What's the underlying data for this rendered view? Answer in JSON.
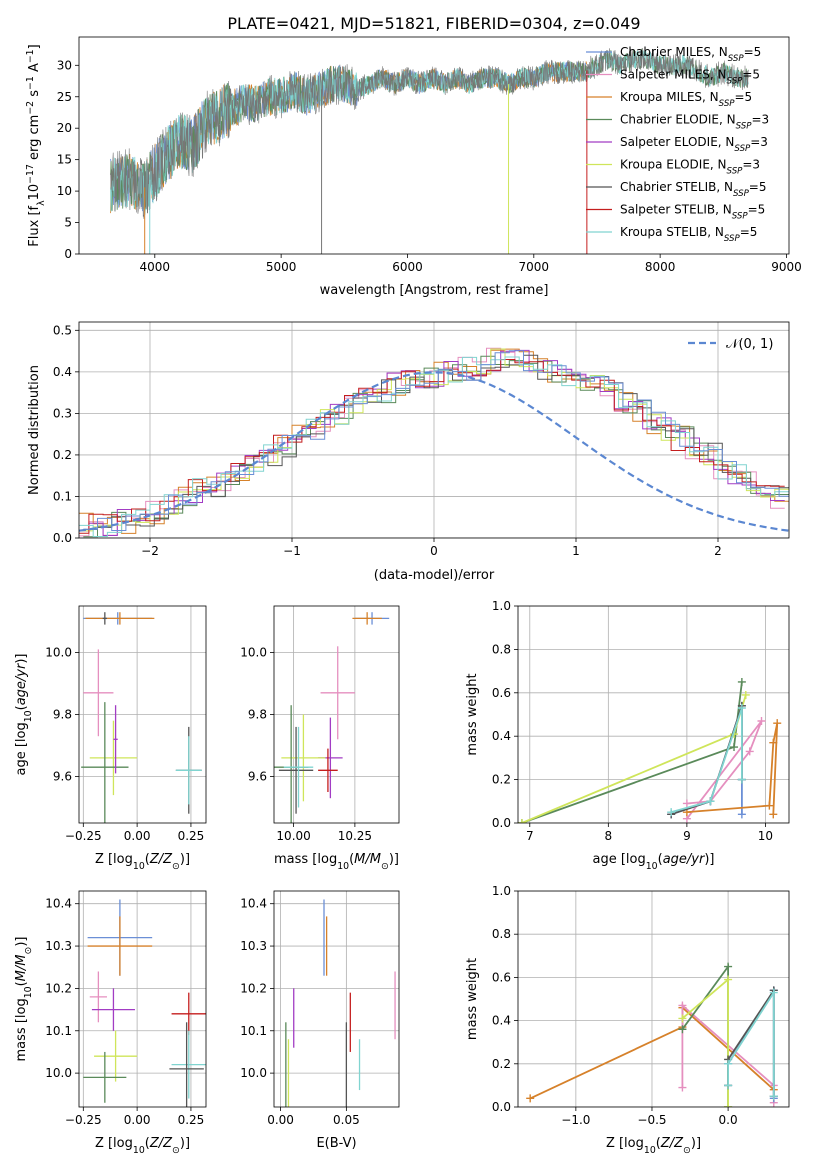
{
  "figure_title": "PLATE=0421, MJD=51821, FIBERID=0304, z=0.049",
  "colors": {
    "Chabrier MILES": "#6b8fd6",
    "Salpeter MILES": "#e58fbf",
    "Kroupa MILES": "#d6812a",
    "Chabrier ELODIE": "#5a8a5a",
    "Salpeter ELODIE": "#a23cc4",
    "Kroupa ELODIE": "#cfe55a",
    "Chabrier STELIB": "#555555",
    "Salpeter STELIB": "#c41e1e",
    "Kroupa STELIB": "#80d4d0",
    "normal": "#5b87d1"
  },
  "chart_data": [
    {
      "id": "spectrum",
      "type": "line",
      "xlabel": "wavelength [Angstrom, rest frame]",
      "ylabel": "Flux [f_λ 10^-17 erg cm^-2 s^-1 A^-1]",
      "xlim": [
        3400,
        9020
      ],
      "ylim": [
        0,
        34.5
      ],
      "xticks": [
        4000,
        5000,
        6000,
        7000,
        8000,
        9000
      ],
      "yticks": [
        0,
        5,
        10,
        15,
        20,
        25,
        30
      ],
      "grid": false,
      "legend": "right",
      "legend_entries": [
        "Chabrier MILES, N_SSP=5",
        "Salpeter MILES, N_SSP=5",
        "Kroupa MILES, N_SSP=5",
        "Chabrier ELODIE, N_SSP=3",
        "Salpeter ELODIE, N_SSP=3",
        "Kroupa ELODIE, N_SSP=3",
        "Chabrier STELIB, N_SSP=5",
        "Salpeter STELIB, N_SSP=5",
        "Kroupa STELIB, N_SSP=5"
      ],
      "legend_labels": [
        {
          "pre": "Chabrier MILES, N",
          "sub": "SSP",
          "post": "=5"
        },
        {
          "pre": "Salpeter MILES, N",
          "sub": "SSP",
          "post": "=5"
        },
        {
          "pre": "Kroupa MILES, N",
          "sub": "SSP",
          "post": "=5"
        },
        {
          "pre": "Chabrier ELODIE, N",
          "sub": "SSP",
          "post": "=3"
        },
        {
          "pre": "Salpeter ELODIE, N",
          "sub": "SSP",
          "post": "=3"
        },
        {
          "pre": "Kroupa ELODIE, N",
          "sub": "SSP",
          "post": "=3"
        },
        {
          "pre": "Chabrier STELIB, N",
          "sub": "SSP",
          "post": "=5"
        },
        {
          "pre": "Salpeter STELIB, N",
          "sub": "SSP",
          "post": "=5"
        },
        {
          "pre": "Kroupa STELIB, N",
          "sub": "SSP",
          "post": "=5"
        }
      ],
      "series": [
        {
          "name": "data",
          "x": [
            3650,
            3800,
            3900,
            4000,
            4100,
            4200,
            4300,
            4400,
            4500,
            4600,
            4700,
            4800,
            4900,
            5000,
            5100,
            5200,
            5300,
            5400,
            5500,
            5600,
            5700,
            5800,
            5900,
            6000,
            6100,
            6200,
            6300,
            6400,
            6500,
            6600,
            6700,
            6800,
            6900,
            7000,
            7100,
            7200,
            7300,
            7400,
            7500,
            7600,
            7700,
            7800,
            7900,
            8000,
            8100,
            8200,
            8300,
            8400,
            8500,
            8600,
            8700
          ],
          "y": [
            11,
            12,
            10,
            13,
            16,
            18,
            17,
            21,
            22,
            23,
            24,
            24,
            25,
            25,
            26,
            25,
            26,
            27,
            27,
            26,
            27,
            28,
            27,
            28,
            27,
            28,
            27,
            28,
            27,
            28,
            28,
            27,
            28,
            28,
            29,
            29,
            29,
            29,
            30,
            31,
            30,
            31,
            31,
            30,
            30,
            30,
            29,
            28,
            29,
            28,
            28
          ]
        }
      ]
    },
    {
      "id": "residuals",
      "type": "histogram",
      "xlabel": "(data-model)/error",
      "ylabel": "Normed distribution",
      "xlim": [
        -2.5,
        2.5
      ],
      "ylim": [
        0,
        0.52
      ],
      "xticks": [
        -2,
        -1,
        0,
        1,
        2
      ],
      "yticks": [
        0.0,
        0.1,
        0.2,
        0.3,
        0.4,
        0.5
      ],
      "grid": true,
      "legend": "top-right",
      "legend_label": "𝒩(0, 1)",
      "bin_width": 0.1,
      "bins_from": -2.5,
      "approximate_histogram": [
        0.03,
        0.03,
        0.035,
        0.04,
        0.05,
        0.06,
        0.08,
        0.1,
        0.115,
        0.12,
        0.14,
        0.16,
        0.18,
        0.2,
        0.22,
        0.245,
        0.26,
        0.28,
        0.3,
        0.32,
        0.34,
        0.355,
        0.37,
        0.38,
        0.39,
        0.395,
        0.405,
        0.41,
        0.42,
        0.43,
        0.44,
        0.43,
        0.41,
        0.4,
        0.39,
        0.38,
        0.37,
        0.36,
        0.33,
        0.31,
        0.28,
        0.26,
        0.24,
        0.22,
        0.2,
        0.17,
        0.15,
        0.13,
        0.12,
        0.1
      ],
      "normal_curve": true
    },
    {
      "id": "age-vs-Z",
      "type": "errorbar",
      "xlabel": "Z [log10(Z/Z⊙)]",
      "ylabel": "age [log10(age/yr)]",
      "xlim": [
        -0.27,
        0.32
      ],
      "ylim": [
        9.45,
        10.15
      ],
      "xticks": [
        -0.25,
        0,
        0.25
      ],
      "xtick_labels": [
        "−0.25",
        "0.00",
        "0.25"
      ],
      "yticks": [
        9.6,
        9.8,
        10.0
      ],
      "grid": true,
      "points": [
        {
          "series": "Chabrier MILES",
          "x": -0.09,
          "xerr": 0.16,
          "y": 10.11,
          "yerr": 0.02
        },
        {
          "series": "Kroupa MILES",
          "x": -0.08,
          "xerr": 0.16,
          "y": 10.11,
          "yerr": 0.02
        },
        {
          "series": "Chabrier STELIB",
          "x": -0.15,
          "xerr": 0.01,
          "y": 10.11,
          "yerr": 0.02
        },
        {
          "series": "Salpeter MILES",
          "x": -0.18,
          "xerr": 0.07,
          "y": 9.87,
          "yerr": 0.14
        },
        {
          "series": "Kroupa ELODIE",
          "x": -0.11,
          "xerr": 0.11,
          "y": 9.66,
          "yerr": 0.12
        },
        {
          "series": "Chabrier ELODIE",
          "x": -0.15,
          "xerr": 0.11,
          "y": 9.63,
          "yerr": 0.21
        },
        {
          "series": "Salpeter ELODIE",
          "x": -0.1,
          "xerr": 0.01,
          "y": 9.72,
          "yerr": 0.11
        },
        {
          "series": "Chabrier STELIB",
          "x": 0.24,
          "xerr": 0.06,
          "y": 9.62,
          "yerr": 0.14
        },
        {
          "series": "Kroupa STELIB",
          "x": 0.24,
          "xerr": 0.06,
          "y": 9.62,
          "yerr": 0.11
        }
      ]
    },
    {
      "id": "age-vs-mass",
      "type": "errorbar",
      "xlabel": "mass [log10(M/M⊙)]",
      "ylabel": "",
      "xlim": [
        9.92,
        10.43
      ],
      "ylim": [
        9.45,
        10.15
      ],
      "xticks": [
        10.0,
        10.25
      ],
      "xtick_labels": [
        "10.00",
        "10.25"
      ],
      "yticks": [
        9.6,
        9.8,
        10.0
      ],
      "grid": true,
      "points": [
        {
          "series": "Chabrier MILES",
          "x": 10.32,
          "xerr": 0.07,
          "y": 10.11,
          "yerr": 0.02
        },
        {
          "series": "Kroupa MILES",
          "x": 10.3,
          "xerr": 0.06,
          "y": 10.11,
          "yerr": 0.02
        },
        {
          "series": "Salpeter MILES",
          "x": 10.18,
          "xerr": 0.07,
          "y": 9.87,
          "yerr": 0.15
        },
        {
          "series": "Salpeter ELODIE",
          "x": 10.15,
          "xerr": 0.05,
          "y": 9.66,
          "yerr": 0.13
        },
        {
          "series": "Kroupa ELODIE",
          "x": 10.04,
          "xerr": 0.09,
          "y": 9.66,
          "yerr": 0.14
        },
        {
          "series": "Chabrier ELODIE",
          "x": 9.99,
          "xerr": 0.07,
          "y": 9.63,
          "yerr": 0.2
        },
        {
          "series": "Chabrier STELIB",
          "x": 10.01,
          "xerr": 0.07,
          "y": 9.62,
          "yerr": 0.14
        },
        {
          "series": "Kroupa STELIB",
          "x": 10.02,
          "xerr": 0.06,
          "y": 9.63,
          "yerr": 0.13
        },
        {
          "series": "Salpeter STELIB",
          "x": 10.14,
          "xerr": 0.04,
          "y": 9.62,
          "yerr": 0.07
        }
      ]
    },
    {
      "id": "mass-weight-vs-age",
      "type": "line",
      "xlabel": "age [log10(age/yr)]",
      "ylabel": "mass weight",
      "xlim": [
        6.85,
        10.3
      ],
      "ylim": [
        0,
        1.0
      ],
      "xticks": [
        7,
        8,
        9,
        10
      ],
      "yticks": [
        0.0,
        0.2,
        0.4,
        0.6,
        0.8,
        1.0
      ],
      "grid": true,
      "series": [
        {
          "name": "Chabrier MILES",
          "x": [
            8.8,
            9.3,
            9.7,
            9.7,
            9.7
          ],
          "y": [
            0.04,
            0.1,
            0.54,
            0.2,
            0.04
          ]
        },
        {
          "name": "Salpeter MILES",
          "x": [
            9.0,
            9.3,
            9.8,
            9.95,
            9.0
          ],
          "y": [
            0.09,
            0.1,
            0.33,
            0.47,
            0.02
          ]
        },
        {
          "name": "Kroupa MILES",
          "x": [
            9.0,
            10.05,
            10.1,
            10.15,
            10.1
          ],
          "y": [
            0.05,
            0.08,
            0.37,
            0.46,
            0.04
          ]
        },
        {
          "name": "Chabrier ELODIE",
          "x": [
            6.9,
            9.6,
            9.7
          ],
          "y": [
            0.0,
            0.35,
            0.65
          ]
        },
        {
          "name": "Kroupa ELODIE",
          "x": [
            6.9,
            9.6,
            9.75
          ],
          "y": [
            0.0,
            0.41,
            0.59
          ]
        },
        {
          "name": "Chabrier STELIB",
          "x": [
            8.8,
            9.3,
            9.7,
            9.7
          ],
          "y": [
            0.04,
            0.1,
            0.54,
            0.2
          ]
        },
        {
          "name": "Kroupa STELIB",
          "x": [
            8.8,
            9.3,
            9.7,
            9.7
          ],
          "y": [
            0.05,
            0.1,
            0.53,
            0.2
          ]
        }
      ]
    },
    {
      "id": "mass-vs-Z",
      "type": "errorbar",
      "xlabel": "Z [log10(Z/Z⊙)]",
      "ylabel": "mass [log10(M/M⊙)]",
      "xlim": [
        -0.27,
        0.32
      ],
      "ylim": [
        9.92,
        10.43
      ],
      "xticks": [
        -0.25,
        0,
        0.25
      ],
      "xtick_labels": [
        "−0.25",
        "0.00",
        "0.25"
      ],
      "yticks": [
        10.0,
        10.1,
        10.2,
        10.3,
        10.4
      ],
      "grid": true,
      "points": [
        {
          "series": "Chabrier MILES",
          "x": -0.08,
          "xerr": 0.15,
          "y": 10.32,
          "yerr": 0.09
        },
        {
          "series": "Kroupa MILES",
          "x": -0.08,
          "xerr": 0.15,
          "y": 10.3,
          "yerr": 0.07
        },
        {
          "series": "Salpeter MILES",
          "x": -0.18,
          "xerr": 0.04,
          "y": 10.18,
          "yerr": 0.06
        },
        {
          "series": "Salpeter ELODIE",
          "x": -0.11,
          "xerr": 0.1,
          "y": 10.15,
          "yerr": 0.05
        },
        {
          "series": "Kroupa ELODIE",
          "x": -0.1,
          "xerr": 0.1,
          "y": 10.04,
          "yerr": 0.06
        },
        {
          "series": "Chabrier ELODIE",
          "x": -0.15,
          "xerr": 0.1,
          "y": 9.99,
          "yerr": 0.06
        },
        {
          "series": "Salpeter STELIB",
          "x": 0.24,
          "xerr": 0.08,
          "y": 10.14,
          "yerr": 0.05
        },
        {
          "series": "Kroupa STELIB",
          "x": 0.24,
          "xerr": 0.08,
          "y": 10.02,
          "yerr": 0.08
        },
        {
          "series": "Chabrier STELIB",
          "x": 0.23,
          "xerr": 0.08,
          "y": 10.01,
          "yerr": 0.11
        }
      ]
    },
    {
      "id": "mass-vs-EBV",
      "type": "errorbar",
      "xlabel": "E(B-V)",
      "ylabel": "",
      "xlim": [
        -0.005,
        0.09
      ],
      "ylim": [
        9.92,
        10.43
      ],
      "xticks": [
        0.0,
        0.05
      ],
      "xtick_labels": [
        "0.00",
        "0.05"
      ],
      "yticks": [
        10.0,
        10.1,
        10.2,
        10.3,
        10.4
      ],
      "grid": true,
      "points": [
        {
          "series": "Chabrier MILES",
          "x": 0.033,
          "y": 10.32,
          "yerr": 0.09
        },
        {
          "series": "Kroupa MILES",
          "x": 0.035,
          "y": 10.3,
          "yerr": 0.07
        },
        {
          "series": "Salpeter MILES",
          "x": 0.087,
          "y": 10.16,
          "yerr": 0.08
        },
        {
          "series": "Salpeter ELODIE",
          "x": 0.01,
          "y": 10.13,
          "yerr": 0.07
        },
        {
          "series": "Salpeter STELIB",
          "x": 0.053,
          "y": 10.12,
          "yerr": 0.07
        },
        {
          "series": "Chabrier STELIB",
          "x": 0.05,
          "y": 10.02,
          "yerr": 0.1
        },
        {
          "series": "Kroupa STELIB",
          "x": 0.06,
          "y": 10.02,
          "yerr": 0.06
        },
        {
          "series": "Chabrier ELODIE",
          "x": 0.004,
          "y": 9.99,
          "yerr": 0.13
        },
        {
          "series": "Kroupa ELODIE",
          "x": 0.006,
          "y": 10.0,
          "yerr": 0.08
        }
      ]
    },
    {
      "id": "mass-weight-vs-Z",
      "type": "line",
      "xlabel": "Z [log10(Z/Z⊙)]",
      "ylabel": "mass weight",
      "xlim": [
        -1.38,
        0.4
      ],
      "ylim": [
        0,
        1.0
      ],
      "xticks": [
        -1.0,
        -0.5,
        0.0
      ],
      "xtick_labels": [
        "−1.0",
        "−0.5",
        "0.0"
      ],
      "yticks": [
        0.0,
        0.2,
        0.4,
        0.6,
        0.8,
        1.0
      ],
      "grid": true,
      "series": [
        {
          "name": "Kroupa MILES",
          "x": [
            -1.3,
            -0.3,
            -0.3,
            0.3
          ],
          "y": [
            0.04,
            0.37,
            0.46,
            0.08
          ]
        },
        {
          "name": "Salpeter MILES",
          "x": [
            -0.3,
            -0.3,
            0.3,
            0.3
          ],
          "y": [
            0.09,
            0.47,
            0.1,
            0.02
          ]
        },
        {
          "name": "Chabrier MILES",
          "x": [
            0.0,
            0.0,
            0.3,
            0.3
          ],
          "y": [
            0.1,
            0.2,
            0.54,
            0.04
          ]
        },
        {
          "name": "Chabrier ELODIE",
          "x": [
            -0.3,
            0.0,
            0.0
          ],
          "y": [
            0.36,
            0.65,
            0.0
          ]
        },
        {
          "name": "Kroupa ELODIE",
          "x": [
            -0.3,
            0.0,
            0.0
          ],
          "y": [
            0.41,
            0.59,
            0.0
          ]
        },
        {
          "name": "Chabrier STELIB",
          "x": [
            0.0,
            0.0,
            0.3,
            0.3
          ],
          "y": [
            0.1,
            0.22,
            0.54,
            0.05
          ]
        },
        {
          "name": "Kroupa STELIB",
          "x": [
            0.0,
            0.0,
            0.3,
            0.3
          ],
          "y": [
            0.1,
            0.2,
            0.53,
            0.05
          ]
        }
      ]
    }
  ]
}
